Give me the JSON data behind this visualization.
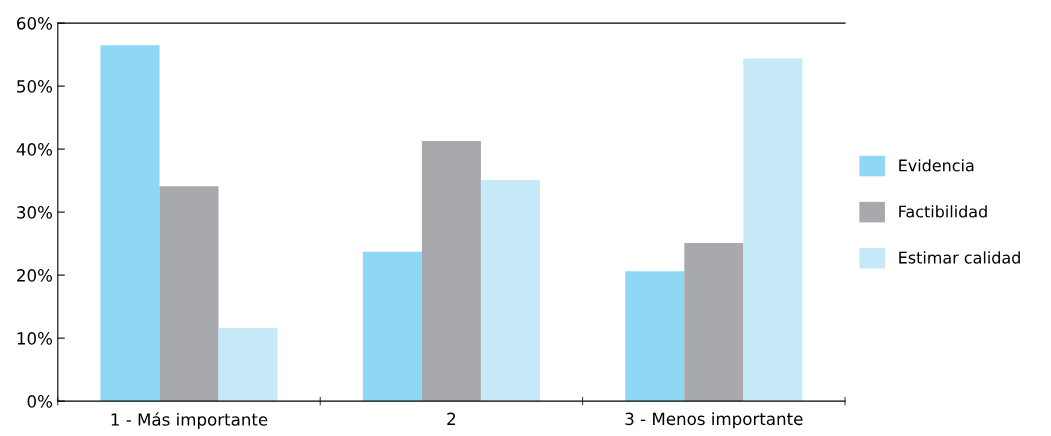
{
  "chart_data": {
    "type": "bar",
    "categories": [
      "1 - Más importante",
      "2",
      "3 - Menos importante"
    ],
    "series": [
      {
        "name": "Evidencia",
        "color": "#8fd8f5",
        "values": [
          56.5,
          23.7,
          20.6
        ]
      },
      {
        "name": "Factibilidad",
        "color": "#a7a9ac",
        "values": [
          34.1,
          41.3,
          25.1
        ]
      },
      {
        "name": "Estimar calidad",
        "color": "#c6e9f8",
        "values": [
          11.6,
          35.1,
          54.4
        ]
      }
    ],
    "ylim": [
      0,
      60
    ],
    "yticks": [
      {
        "value": 0,
        "label": "0%"
      },
      {
        "value": 10,
        "label": "10%"
      },
      {
        "value": 20,
        "label": "20%"
      },
      {
        "value": 30,
        "label": "30%"
      },
      {
        "value": 40,
        "label": "40%"
      },
      {
        "value": 50,
        "label": "50%"
      },
      {
        "value": 60,
        "label": "60%"
      }
    ],
    "grid": false,
    "legend": "right"
  }
}
